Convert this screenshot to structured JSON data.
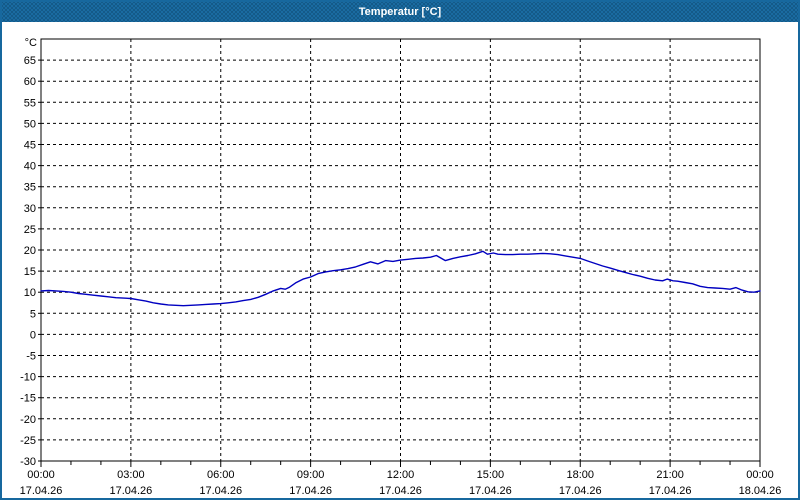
{
  "window": {
    "title": "Temperatur [°C]",
    "title_bar_color": "#1a6ba1",
    "border_color": "#17689e",
    "background": "#ffffff"
  },
  "chart_data": {
    "type": "line",
    "title": "Temperatur [°C]",
    "y_unit_label": "°C",
    "ylim": [
      -30,
      70
    ],
    "y_tick_step": 5,
    "y_tick_labels": [
      65,
      60,
      55,
      50,
      45,
      40,
      35,
      30,
      25,
      20,
      15,
      10,
      5,
      0,
      -5,
      -10,
      -15,
      -20,
      -25,
      -30
    ],
    "x_range_hours": [
      0,
      24
    ],
    "x_major_tick_hours": 3,
    "x_minor_tick_hours": 1,
    "x_ticks": [
      {
        "time": "00:00",
        "date": "17.04.26"
      },
      {
        "time": "03:00",
        "date": "17.04.26"
      },
      {
        "time": "06:00",
        "date": "17.04.26"
      },
      {
        "time": "09:00",
        "date": "17.04.26"
      },
      {
        "time": "12:00",
        "date": "17.04.26"
      },
      {
        "time": "15:00",
        "date": "17.04.26"
      },
      {
        "time": "18:00",
        "date": "17.04.26"
      },
      {
        "time": "21:00",
        "date": "17.04.26"
      },
      {
        "time": "00:00",
        "date": "18.04.26"
      }
    ],
    "grid": "dashed-black",
    "line_color": "#0000c0",
    "series": [
      {
        "name": "Temperatur",
        "x_hours": [
          0,
          0.25,
          0.5,
          0.75,
          1,
          1.25,
          1.5,
          1.75,
          2,
          2.25,
          2.5,
          2.75,
          3,
          3.25,
          3.5,
          3.75,
          4,
          4.25,
          4.5,
          4.75,
          5,
          5.25,
          5.5,
          5.75,
          6,
          6.25,
          6.5,
          6.75,
          7,
          7.25,
          7.5,
          7.75,
          8,
          8.15,
          8.3,
          8.5,
          8.75,
          9,
          9.25,
          9.5,
          9.75,
          10,
          10.25,
          10.5,
          10.75,
          11,
          11.25,
          11.5,
          11.75,
          12,
          12.25,
          12.5,
          12.75,
          13,
          13.2,
          13.5,
          13.75,
          14,
          14.25,
          14.5,
          14.75,
          14.9,
          15.1,
          15.25,
          15.5,
          15.75,
          16,
          16.25,
          16.5,
          16.75,
          17,
          17.25,
          17.5,
          17.75,
          18,
          18.25,
          18.5,
          18.75,
          19,
          19.25,
          19.5,
          19.75,
          20,
          20.25,
          20.5,
          20.75,
          20.9,
          21.1,
          21.25,
          21.5,
          21.75,
          22,
          22.25,
          22.5,
          22.75,
          23,
          23.2,
          23.4,
          23.6,
          23.8,
          24
        ],
        "values": [
          10.3,
          10.4,
          10.3,
          10.2,
          10.0,
          9.7,
          9.5,
          9.3,
          9.1,
          8.9,
          8.7,
          8.6,
          8.5,
          8.2,
          7.9,
          7.5,
          7.2,
          7.0,
          6.9,
          6.8,
          6.9,
          7.0,
          7.1,
          7.2,
          7.3,
          7.5,
          7.7,
          8.0,
          8.3,
          8.8,
          9.5,
          10.3,
          10.9,
          10.7,
          11.2,
          12.2,
          13.1,
          13.6,
          14.4,
          14.8,
          15.1,
          15.3,
          15.6,
          16.0,
          16.6,
          17.2,
          16.7,
          17.5,
          17.3,
          17.6,
          17.8,
          18.0,
          18.1,
          18.3,
          18.7,
          17.5,
          18.0,
          18.4,
          18.7,
          19.1,
          19.7,
          19.0,
          19.3,
          19.0,
          18.9,
          18.9,
          19.0,
          19.0,
          19.1,
          19.2,
          19.1,
          18.9,
          18.6,
          18.3,
          18.0,
          17.4,
          16.8,
          16.2,
          15.7,
          15.2,
          14.7,
          14.2,
          13.8,
          13.3,
          12.9,
          12.7,
          13.1,
          12.7,
          12.6,
          12.3,
          12.0,
          11.4,
          11.1,
          11.0,
          10.9,
          10.7,
          11.1,
          10.5,
          10.1,
          10.0,
          10.3
        ]
      }
    ]
  }
}
